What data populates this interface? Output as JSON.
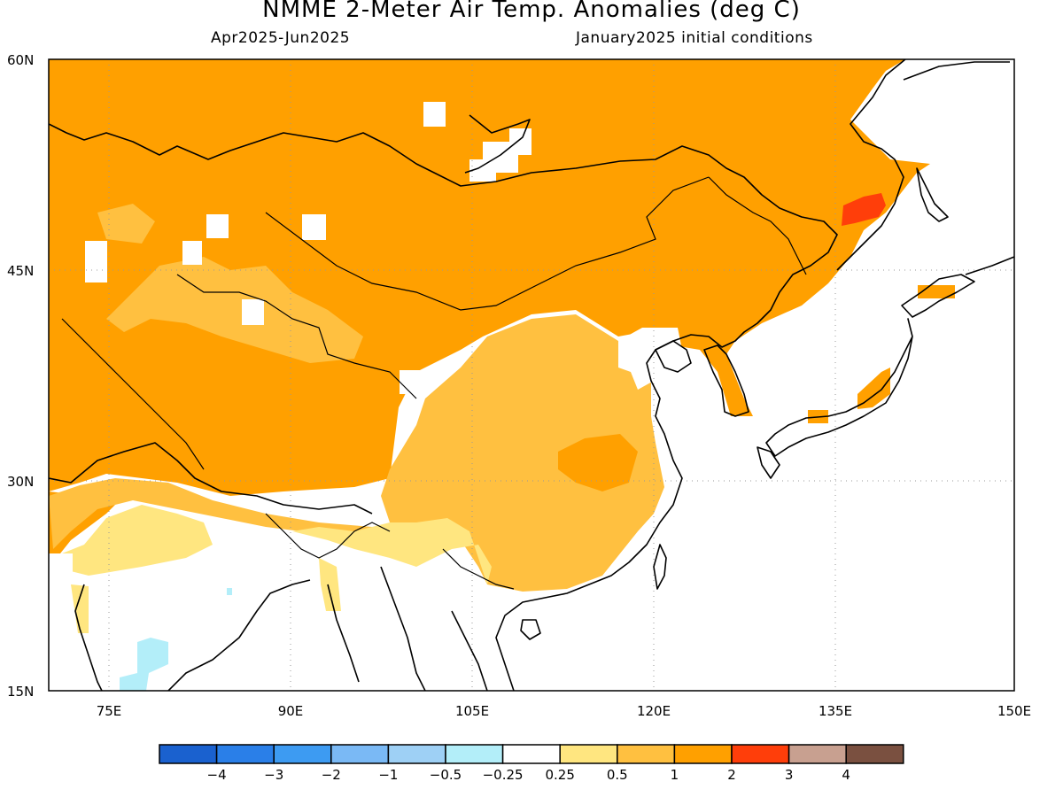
{
  "header": {
    "title": "NMME 2-Meter Air Temp. Anomalies (deg C)",
    "period": "Apr2025-Jun2025",
    "initial_conditions": "January2025 initial conditions"
  },
  "map": {
    "lon_range": [
      70,
      150
    ],
    "lat_range": [
      15,
      60
    ],
    "lat_ticks": [
      "60N",
      "45N",
      "30N",
      "15N"
    ],
    "lon_ticks": [
      "75E",
      "90E",
      "105E",
      "120E",
      "135E",
      "150E"
    ],
    "grid_lines": "dotted"
  },
  "colorbar": {
    "colors": [
      "#1a61cf",
      "#2a7fe8",
      "#3d9bf2",
      "#7ab9f5",
      "#9ed0f5",
      "#b3eef9",
      "#ffffff",
      "#ffe680",
      "#ffc040",
      "#ffa000",
      "#ff3e0a",
      "#c8a090",
      "#7a5040"
    ],
    "labels": [
      "−4",
      "−3",
      "−2",
      "−1",
      "−0.5",
      "−0.25",
      "0.25",
      "0.5",
      "1",
      "2",
      "3",
      "4"
    ]
  },
  "anomaly_classes": {
    "strong_warm": "2",
    "warm": "1",
    "mild_warm": "0.5",
    "very_warm": "3",
    "cool": "-0.5"
  }
}
